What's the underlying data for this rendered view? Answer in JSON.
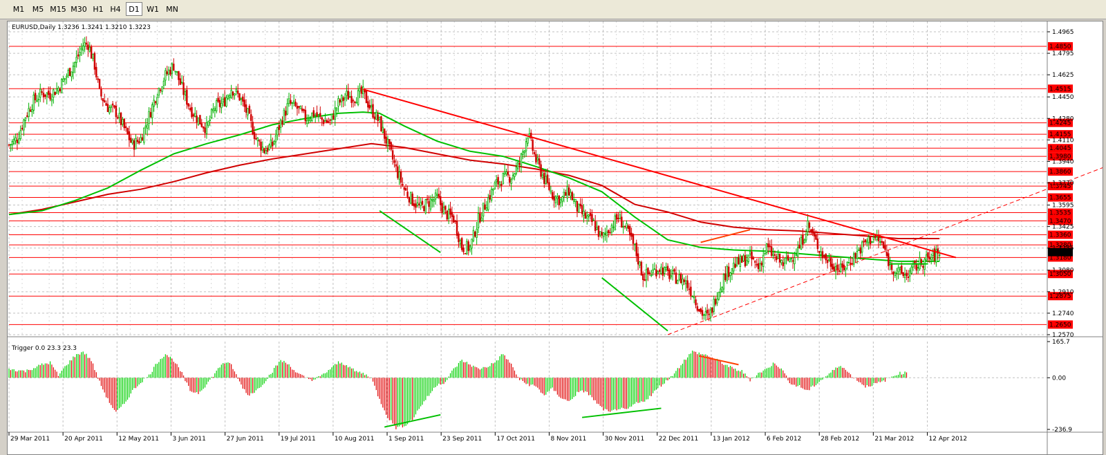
{
  "toolbar": {
    "timeframes": [
      "M1",
      "M5",
      "M15",
      "M30",
      "H1",
      "H4",
      "D1",
      "W1",
      "MN"
    ],
    "active": "D1"
  },
  "price_panel": {
    "header": "EURUSD,Daily  1.3236 1.3241 1.3210 1.3223",
    "current_price": "1.3223"
  },
  "indicator_panel": {
    "header": "Trigger 0.0 23.3 23.3"
  },
  "colors": {
    "bull": "#00b000",
    "bear": "#d00000",
    "ma_green": "#00c000",
    "ma_red": "#d00000",
    "level_line": "#ff0000",
    "hist_pos": "#00d000",
    "hist_neg": "#e00000",
    "orange": "#ff4000",
    "grid": "#c0c0c0"
  },
  "chart_data": [
    {
      "type": "candlestick",
      "title": "EURUSD,Daily  1.3236 1.3241 1.3210 1.3223",
      "ylim": [
        1.257,
        1.5025
      ],
      "y_ticks": [
        1.4965,
        1.4795,
        1.4625,
        1.445,
        1.428,
        1.411,
        1.394,
        1.377,
        1.3595,
        1.3425,
        1.3255,
        1.308,
        1.291,
        1.274,
        1.257
      ],
      "horizontal_levels": [
        1.485,
        1.4515,
        1.4245,
        1.4155,
        1.4045,
        1.398,
        1.386,
        1.3745,
        1.3655,
        1.3535,
        1.347,
        1.336,
        1.328,
        1.318,
        1.305,
        1.2875,
        1.265
      ],
      "level_labels": [
        "1.4850",
        "1.4515",
        "1.4245",
        "1.4155",
        "1.4045",
        "1.3980",
        "1.3860",
        "1.3745",
        "1.3655",
        "1.3535",
        "1.3470",
        "1.3360",
        "1.3280",
        "1.3180",
        "1.3050",
        "1.2875",
        "1.2650"
      ],
      "x_labels": [
        "29 Mar 2011",
        "20 Apr 2011",
        "12 May 2011",
        "3 Jun 2011",
        "27 Jun 2011",
        "19 Jul 2011",
        "10 Aug 2011",
        "1 Sep 2011",
        "23 Sep 2011",
        "17 Oct 2011",
        "8 Nov 2011",
        "30 Nov 2011",
        "22 Dec 2011",
        "13 Jan 2012",
        "6 Feb 2012",
        "28 Feb 2012",
        "21 Mar 2012",
        "12 Apr 2012"
      ],
      "close_path": [
        [
          0,
          1.407
        ],
        [
          5,
          1.412
        ],
        [
          10,
          1.43
        ],
        [
          15,
          1.442
        ],
        [
          20,
          1.448
        ],
        [
          25,
          1.447
        ],
        [
          30,
          1.452
        ],
        [
          35,
          1.462
        ],
        [
          40,
          1.472
        ],
        [
          45,
          1.486
        ],
        [
          48,
          1.487
        ],
        [
          52,
          1.47
        ],
        [
          55,
          1.448
        ],
        [
          60,
          1.437
        ],
        [
          65,
          1.433
        ],
        [
          70,
          1.42
        ],
        [
          75,
          1.407
        ],
        [
          80,
          1.412
        ],
        [
          85,
          1.43
        ],
        [
          90,
          1.449
        ],
        [
          95,
          1.462
        ],
        [
          100,
          1.47
        ],
        [
          105,
          1.452
        ],
        [
          110,
          1.436
        ],
        [
          115,
          1.427
        ],
        [
          120,
          1.42
        ],
        [
          125,
          1.437
        ],
        [
          130,
          1.44
        ],
        [
          135,
          1.452
        ],
        [
          140,
          1.445
        ],
        [
          145,
          1.431
        ],
        [
          150,
          1.412
        ],
        [
          155,
          1.403
        ],
        [
          160,
          1.407
        ],
        [
          165,
          1.425
        ],
        [
          170,
          1.44
        ],
        [
          175,
          1.436
        ],
        [
          180,
          1.428
        ],
        [
          185,
          1.432
        ],
        [
          190,
          1.427
        ],
        [
          195,
          1.425
        ],
        [
          200,
          1.44
        ],
        [
          205,
          1.446
        ],
        [
          210,
          1.445
        ],
        [
          215,
          1.448
        ],
        [
          220,
          1.435
        ],
        [
          225,
          1.425
        ],
        [
          230,
          1.407
        ],
        [
          235,
          1.388
        ],
        [
          240,
          1.372
        ],
        [
          245,
          1.363
        ],
        [
          250,
          1.357
        ],
        [
          255,
          1.362
        ],
        [
          260,
          1.365
        ],
        [
          265,
          1.353
        ],
        [
          270,
          1.349
        ],
        [
          275,
          1.326
        ],
        [
          280,
          1.326
        ],
        [
          285,
          1.348
        ],
        [
          290,
          1.362
        ],
        [
          295,
          1.375
        ],
        [
          300,
          1.381
        ],
        [
          305,
          1.382
        ],
        [
          310,
          1.392
        ],
        [
          315,
          1.416
        ],
        [
          320,
          1.395
        ],
        [
          325,
          1.38
        ],
        [
          330,
          1.368
        ],
        [
          335,
          1.363
        ],
        [
          340,
          1.371
        ],
        [
          345,
          1.357
        ],
        [
          350,
          1.35
        ],
        [
          355,
          1.345
        ],
        [
          360,
          1.333
        ],
        [
          365,
          1.342
        ],
        [
          370,
          1.35
        ],
        [
          375,
          1.34
        ],
        [
          380,
          1.325
        ],
        [
          385,
          1.303
        ],
        [
          390,
          1.306
        ],
        [
          395,
          1.31
        ],
        [
          400,
          1.305
        ],
        [
          405,
          1.302
        ],
        [
          410,
          1.3
        ],
        [
          415,
          1.29
        ],
        [
          420,
          1.275
        ],
        [
          425,
          1.27
        ],
        [
          430,
          1.29
        ],
        [
          435,
          1.305
        ],
        [
          440,
          1.312
        ],
        [
          445,
          1.315
        ],
        [
          450,
          1.318
        ],
        [
          455,
          1.31
        ],
        [
          460,
          1.326
        ],
        [
          465,
          1.318
        ],
        [
          470,
          1.313
        ],
        [
          475,
          1.318
        ],
        [
          480,
          1.326
        ],
        [
          485,
          1.344
        ],
        [
          490,
          1.33
        ],
        [
          495,
          1.318
        ],
        [
          500,
          1.313
        ],
        [
          505,
          1.308
        ],
        [
          510,
          1.314
        ],
        [
          515,
          1.322
        ],
        [
          520,
          1.33
        ],
        [
          525,
          1.334
        ],
        [
          530,
          1.329
        ],
        [
          535,
          1.312
        ],
        [
          540,
          1.306
        ],
        [
          545,
          1.304
        ],
        [
          550,
          1.31
        ],
        [
          555,
          1.315
        ],
        [
          560,
          1.318
        ],
        [
          565,
          1.322
        ]
      ],
      "ma_green_path": [
        [
          0,
          1.352
        ],
        [
          20,
          1.355
        ],
        [
          40,
          1.363
        ],
        [
          60,
          1.373
        ],
        [
          80,
          1.387
        ],
        [
          100,
          1.4
        ],
        [
          120,
          1.408
        ],
        [
          140,
          1.415
        ],
        [
          160,
          1.423
        ],
        [
          180,
          1.428
        ],
        [
          200,
          1.432
        ],
        [
          215,
          1.433
        ],
        [
          225,
          1.432
        ],
        [
          240,
          1.422
        ],
        [
          260,
          1.41
        ],
        [
          280,
          1.402
        ],
        [
          300,
          1.398
        ],
        [
          320,
          1.39
        ],
        [
          340,
          1.381
        ],
        [
          360,
          1.37
        ],
        [
          380,
          1.35
        ],
        [
          400,
          1.332
        ],
        [
          420,
          1.326
        ],
        [
          440,
          1.324
        ],
        [
          460,
          1.323
        ],
        [
          480,
          1.321
        ],
        [
          500,
          1.319
        ],
        [
          520,
          1.317
        ],
        [
          540,
          1.315
        ],
        [
          565,
          1.315
        ]
      ],
      "ma_red_path": [
        [
          0,
          1.352
        ],
        [
          20,
          1.356
        ],
        [
          40,
          1.362
        ],
        [
          60,
          1.368
        ],
        [
          80,
          1.372
        ],
        [
          100,
          1.378
        ],
        [
          120,
          1.385
        ],
        [
          140,
          1.391
        ],
        [
          160,
          1.396
        ],
        [
          180,
          1.4
        ],
        [
          200,
          1.404
        ],
        [
          220,
          1.408
        ],
        [
          240,
          1.405
        ],
        [
          260,
          1.4
        ],
        [
          280,
          1.395
        ],
        [
          300,
          1.392
        ],
        [
          320,
          1.388
        ],
        [
          340,
          1.383
        ],
        [
          360,
          1.375
        ],
        [
          380,
          1.36
        ],
        [
          400,
          1.354
        ],
        [
          420,
          1.346
        ],
        [
          440,
          1.342
        ],
        [
          460,
          1.34
        ],
        [
          480,
          1.339
        ],
        [
          500,
          1.337
        ],
        [
          520,
          1.335
        ],
        [
          540,
          1.333
        ],
        [
          565,
          1.333
        ]
      ],
      "trendlines": [
        {
          "name": "downtrend-main",
          "color": "#ff0000",
          "style": "solid",
          "from": [
            215,
            1.451
          ],
          "to": [
            575,
            1.318
          ]
        },
        {
          "name": "uptrend-dashed",
          "color": "#ff0000",
          "style": "dashed",
          "from": [
            400,
            1.257
          ],
          "to": [
            740,
            1.427
          ]
        },
        {
          "name": "green-sep-bottom",
          "color": "#00c000",
          "style": "solid",
          "from": [
            225,
            1.355
          ],
          "to": [
            262,
            1.322
          ]
        },
        {
          "name": "green-dec-bottom",
          "color": "#00c000",
          "style": "solid",
          "from": [
            360,
            1.302
          ],
          "to": [
            400,
            1.26
          ]
        },
        {
          "name": "green-apr-support",
          "color": "#00c000",
          "style": "solid",
          "from": [
            535,
            1.313
          ],
          "to": [
            558,
            1.313
          ]
        },
        {
          "name": "orange-feb-top",
          "color": "#ff4000",
          "style": "solid",
          "from": [
            420,
            1.33
          ],
          "to": [
            450,
            1.34
          ]
        }
      ]
    },
    {
      "type": "bar",
      "title": "Trigger 0.0 23.3 23.3",
      "ylim": [
        -236.9,
        165.7
      ],
      "y_ticks": [
        165.7,
        0.0,
        -236.9
      ],
      "y_tick_labels": [
        "165.7",
        "0.00",
        "-236.9"
      ],
      "values_path": [
        [
          0,
          40
        ],
        [
          10,
          30
        ],
        [
          20,
          60
        ],
        [
          25,
          70
        ],
        [
          30,
          10
        ],
        [
          35,
          60
        ],
        [
          40,
          100
        ],
        [
          45,
          120
        ],
        [
          50,
          80
        ],
        [
          55,
          -20
        ],
        [
          60,
          -100
        ],
        [
          65,
          -160
        ],
        [
          70,
          -120
        ],
        [
          75,
          -60
        ],
        [
          80,
          -20
        ],
        [
          85,
          10
        ],
        [
          90,
          70
        ],
        [
          95,
          110
        ],
        [
          100,
          80
        ],
        [
          105,
          20
        ],
        [
          110,
          -60
        ],
        [
          115,
          -70
        ],
        [
          120,
          -30
        ],
        [
          125,
          20
        ],
        [
          130,
          70
        ],
        [
          135,
          60
        ],
        [
          140,
          -20
        ],
        [
          145,
          -80
        ],
        [
          150,
          -60
        ],
        [
          155,
          -20
        ],
        [
          160,
          30
        ],
        [
          165,
          80
        ],
        [
          170,
          60
        ],
        [
          175,
          20
        ],
        [
          180,
          0
        ],
        [
          185,
          -10
        ],
        [
          190,
          10
        ],
        [
          195,
          40
        ],
        [
          200,
          70
        ],
        [
          205,
          60
        ],
        [
          210,
          30
        ],
        [
          215,
          20
        ],
        [
          220,
          0
        ],
        [
          225,
          -100
        ],
        [
          230,
          -180
        ],
        [
          235,
          -230
        ],
        [
          240,
          -220
        ],
        [
          245,
          -190
        ],
        [
          250,
          -130
        ],
        [
          255,
          -80
        ],
        [
          260,
          -30
        ],
        [
          265,
          -20
        ],
        [
          270,
          40
        ],
        [
          275,
          80
        ],
        [
          280,
          60
        ],
        [
          285,
          40
        ],
        [
          290,
          50
        ],
        [
          295,
          70
        ],
        [
          300,
          110
        ],
        [
          305,
          60
        ],
        [
          310,
          -10
        ],
        [
          315,
          -30
        ],
        [
          320,
          -40
        ],
        [
          325,
          -80
        ],
        [
          330,
          -50
        ],
        [
          335,
          -90
        ],
        [
          340,
          -110
        ],
        [
          345,
          -70
        ],
        [
          350,
          -60
        ],
        [
          355,
          -100
        ],
        [
          360,
          -140
        ],
        [
          365,
          -160
        ],
        [
          370,
          -140
        ],
        [
          375,
          -150
        ],
        [
          380,
          -120
        ],
        [
          385,
          -110
        ],
        [
          390,
          -80
        ],
        [
          395,
          -40
        ],
        [
          400,
          -10
        ],
        [
          405,
          30
        ],
        [
          410,
          80
        ],
        [
          415,
          120
        ],
        [
          420,
          110
        ],
        [
          425,
          100
        ],
        [
          430,
          80
        ],
        [
          435,
          60
        ],
        [
          440,
          40
        ],
        [
          445,
          30
        ],
        [
          450,
          -10
        ],
        [
          455,
          20
        ],
        [
          460,
          40
        ],
        [
          465,
          70
        ],
        [
          470,
          30
        ],
        [
          475,
          -30
        ],
        [
          480,
          -40
        ],
        [
          485,
          -60
        ],
        [
          490,
          -30
        ],
        [
          495,
          0
        ],
        [
          500,
          30
        ],
        [
          505,
          60
        ],
        [
          510,
          20
        ],
        [
          515,
          -10
        ],
        [
          520,
          -40
        ],
        [
          525,
          -30
        ],
        [
          530,
          -20
        ],
        [
          535,
          0
        ],
        [
          540,
          20
        ],
        [
          545,
          23.3
        ]
      ],
      "trendlines": [
        {
          "name": "green-sep-lows",
          "color": "#00c000",
          "from": [
            228,
            -226
          ],
          "to": [
            262,
            -170
          ]
        },
        {
          "name": "green-dec-lows",
          "color": "#00c000",
          "from": [
            348,
            -182
          ],
          "to": [
            396,
            -140
          ]
        },
        {
          "name": "orange-feb-highs",
          "color": "#ff4000",
          "from": [
            419,
            100
          ],
          "to": [
            443,
            60
          ]
        }
      ]
    }
  ]
}
